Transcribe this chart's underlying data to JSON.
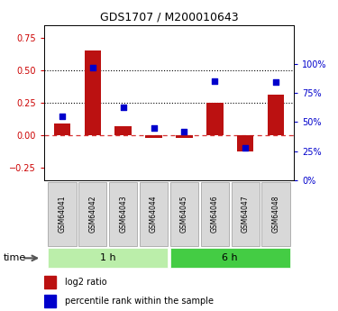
{
  "title": "GDS1707 / M200010643",
  "samples": [
    "GSM64041",
    "GSM64042",
    "GSM64043",
    "GSM64044",
    "GSM64045",
    "GSM64046",
    "GSM64047",
    "GSM64048"
  ],
  "log2_ratio": [
    0.09,
    0.65,
    0.07,
    -0.02,
    -0.02,
    0.25,
    -0.13,
    0.31
  ],
  "percentile_rank": [
    55,
    97,
    63,
    45,
    42,
    85,
    28,
    84
  ],
  "bar_color": "#bb1111",
  "scatter_color": "#0000cc",
  "ylim_left": [
    -0.35,
    0.85
  ],
  "ylim_right": [
    0,
    133.33
  ],
  "yticks_left": [
    -0.25,
    0.0,
    0.25,
    0.5,
    0.75
  ],
  "yticks_right": [
    0,
    25,
    50,
    75,
    100
  ],
  "hlines": [
    0.25,
    0.5
  ],
  "left_axis_color": "#cc0000",
  "right_axis_color": "#0000cc",
  "background_color": "#ffffff",
  "group1_color": "#bbeeaa",
  "group2_color": "#44cc44",
  "legend_items": [
    {
      "color": "#bb1111",
      "label": "log2 ratio"
    },
    {
      "color": "#0000cc",
      "label": "percentile rank within the sample"
    }
  ]
}
